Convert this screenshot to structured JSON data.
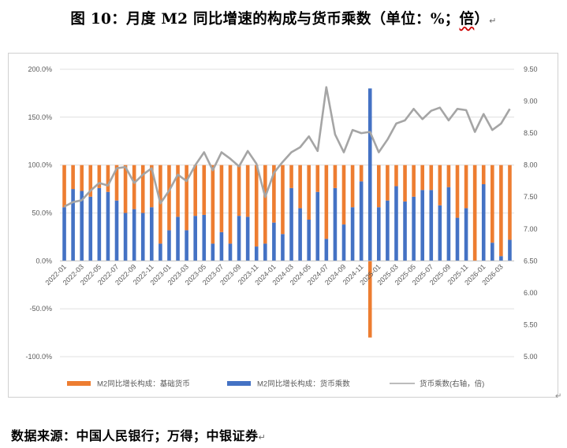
{
  "header": {
    "title": "图 10：月度 M2 同比增速的构成与货币乘数（单位：%；",
    "title_tail": "倍",
    "title_close": "）",
    "title_mark": "↵"
  },
  "footer": {
    "source": "数据来源：中国人民银行；万得；中银证券",
    "source_mark": "↵",
    "corner_mark": "↵"
  },
  "colors": {
    "base_money": "#ED7D31",
    "multiplier_part": "#4472C4",
    "multiplier_line": "#A5A5A5",
    "grid": "#D9D9D9"
  },
  "chart_data": {
    "type": "bar",
    "stacked": true,
    "categories": [
      "2022-01",
      "2022-02",
      "2022-03",
      "2022-04",
      "2022-05",
      "2022-06",
      "2022-07",
      "2022-08",
      "2022-09",
      "2022-10",
      "2022-11",
      "2022-12",
      "2023-01",
      "2023-02",
      "2023-03",
      "2023-04",
      "2023-05",
      "2023-06",
      "2023-07",
      "2023-08",
      "2023-09",
      "2023-10",
      "2023-11",
      "2023-12",
      "2024-01",
      "2024-02",
      "2024-03",
      "2024-04",
      "2024-05",
      "2024-06",
      "2024-07",
      "2024-08",
      "2024-09",
      "2024-10",
      "2024-11",
      "2024-12",
      "2025-01",
      "2025-02",
      "2025-03",
      "2025-04",
      "2025-05",
      "2025-06",
      "2025-07",
      "2025-08",
      "2025-09",
      "2025-10",
      "2025-11",
      "2025-12",
      "2026-01",
      "2026-02",
      "2026-03",
      "2026-04"
    ],
    "tick_labels": [
      "2022-01",
      "2022-03",
      "2022-05",
      "2022-07",
      "2022-09",
      "2022-11",
      "2023-01",
      "2023-03",
      "2023-05",
      "2023-07",
      "2023-09",
      "2023-11",
      "2024-01",
      "2024-03",
      "2024-05",
      "2024-07",
      "2024-09",
      "2024-11",
      "2025-01",
      "2025-03",
      "2025-05",
      "2025-07",
      "2025-09",
      "2025-11",
      "2026-01",
      "2026-03"
    ],
    "y_left": {
      "min": -100,
      "max": 200,
      "step": 50,
      "ticks": [
        "-100.0%",
        "-50.0%",
        "0.0%",
        "50.0%",
        "100.0%",
        "150.0%",
        "200.0%"
      ]
    },
    "y_right": {
      "min": 5.0,
      "max": 9.5,
      "step": 0.5,
      "ticks": [
        "5.00",
        "5.50",
        "6.00",
        "6.50",
        "7.00",
        "7.50",
        "8.00",
        "8.50",
        "9.00",
        "9.50"
      ]
    },
    "series": [
      {
        "name": "M2同比增长构成：基础货币",
        "axis": "left",
        "kind": "bar",
        "values": [
          44,
          25,
          27,
          33,
          24,
          28,
          37,
          50,
          46,
          50,
          44,
          82,
          68,
          54,
          68,
          53,
          52,
          82,
          70,
          82,
          53,
          54,
          85,
          82,
          60,
          72,
          24,
          45,
          57,
          28,
          77,
          24,
          62,
          44,
          17,
          -80,
          44,
          37,
          22,
          38,
          33,
          26,
          26,
          42,
          23,
          55,
          45,
          100,
          20,
          81,
          95,
          78
        ]
      },
      {
        "name": "M2同比增长构成：货币乘数",
        "axis": "left",
        "kind": "bar",
        "values": [
          56,
          75,
          73,
          67,
          76,
          72,
          63,
          50,
          54,
          50,
          56,
          18,
          32,
          46,
          32,
          47,
          48,
          18,
          30,
          18,
          47,
          46,
          15,
          18,
          40,
          28,
          76,
          55,
          43,
          72,
          23,
          76,
          38,
          56,
          83,
          180,
          56,
          63,
          78,
          62,
          67,
          74,
          74,
          58,
          77,
          45,
          55,
          0,
          80,
          19,
          5,
          22
        ]
      },
      {
        "name": "货币乘数(右轴，倍)",
        "axis": "right",
        "kind": "line",
        "values": [
          7.35,
          7.42,
          7.45,
          7.6,
          7.72,
          7.68,
          7.95,
          7.97,
          7.72,
          7.85,
          7.95,
          7.4,
          7.6,
          7.85,
          7.75,
          8.0,
          8.2,
          7.92,
          8.2,
          8.1,
          7.98,
          8.22,
          8.02,
          7.5,
          7.88,
          8.05,
          8.2,
          8.28,
          8.45,
          8.22,
          9.22,
          8.48,
          8.2,
          8.55,
          8.5,
          8.52,
          8.2,
          8.4,
          8.65,
          8.7,
          8.88,
          8.72,
          8.85,
          8.9,
          8.7,
          8.88,
          8.86,
          8.52,
          8.8,
          8.55,
          8.65,
          8.88
        ]
      }
    ],
    "legend": {
      "placement": "bottom",
      "items": [
        "M2同比增长构成：基础货币",
        "M2同比增长构成：货币乘数",
        "货币乘数(右轴，倍)"
      ]
    }
  }
}
